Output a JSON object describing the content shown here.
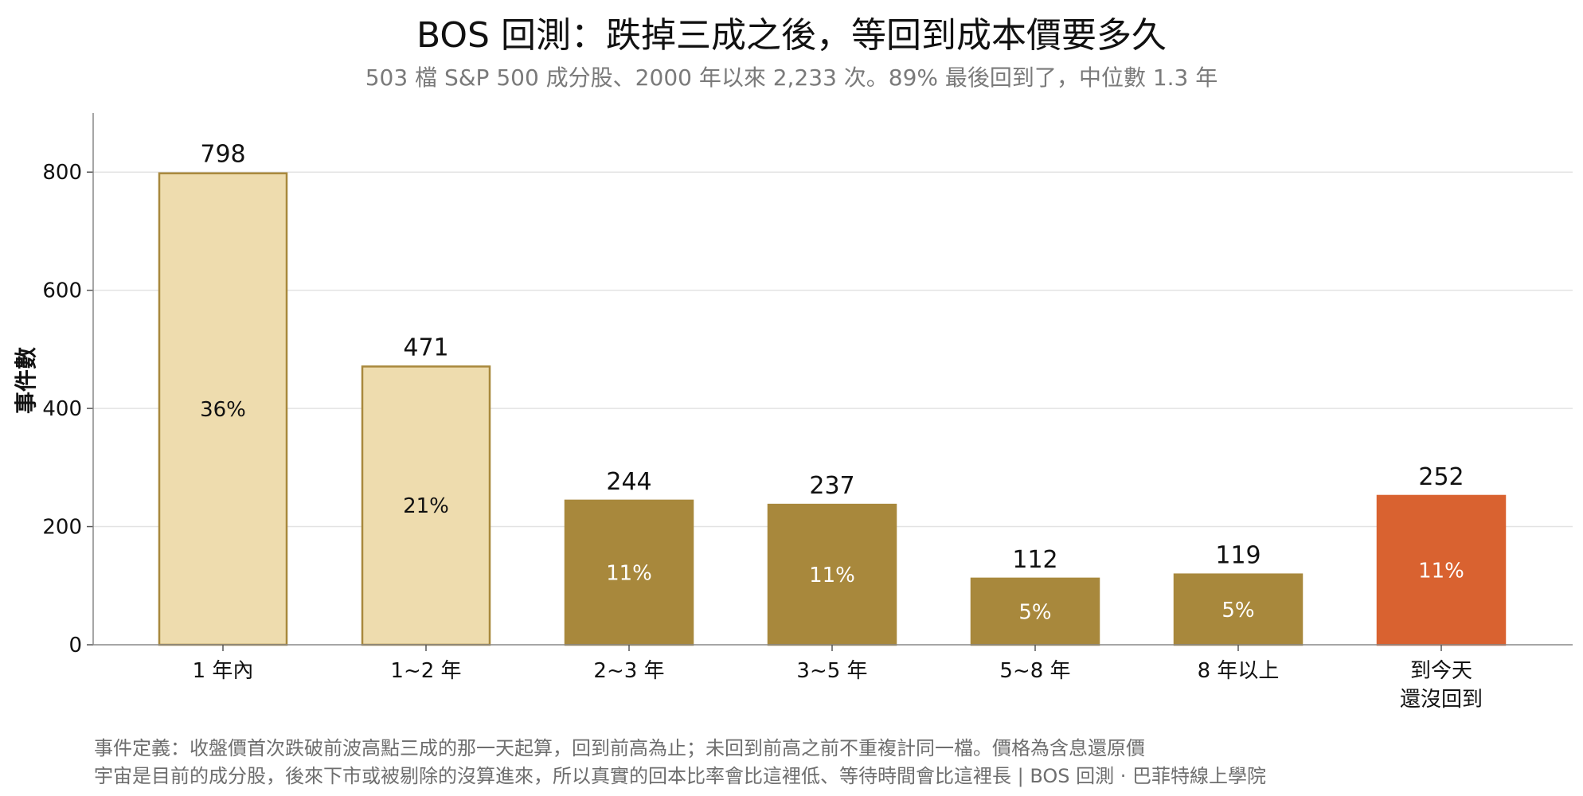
{
  "chart_data": {
    "type": "bar",
    "title": "BOS 回測：跌掉三成之後，等回到成本價要多久",
    "subtitle": "503 檔 S&P 500 成分股、2000 年以來 2,233 次。89% 最後回到了，中位數 1.3 年",
    "ylabel": "事件數",
    "xlabel": "",
    "ylim": [
      0,
      900
    ],
    "yticks": [
      0,
      200,
      400,
      600,
      800
    ],
    "grid": true,
    "categories": [
      "1 年內",
      "1~2 年",
      "2~3 年",
      "3~5 年",
      "5~8 年",
      "8 年以上",
      "到今天\n還沒回到"
    ],
    "values": [
      798,
      471,
      244,
      237,
      112,
      119,
      252
    ],
    "percent_labels": [
      "36%",
      "21%",
      "11%",
      "11%",
      "5%",
      "5%",
      "11%"
    ],
    "bar_colors": [
      "#eedcae",
      "#eedcae",
      "#a8883c",
      "#a8883c",
      "#a8883c",
      "#a8883c",
      "#d96230"
    ],
    "bar_edge_colors": [
      "#a8883c",
      "#a8883c",
      "#a8883c",
      "#a8883c",
      "#a8883c",
      "#a8883c",
      "#d96230"
    ],
    "percent_text_colors": [
      "#111111",
      "#111111",
      "#ffffff",
      "#ffffff",
      "#ffffff",
      "#ffffff",
      "#ffffff"
    ]
  },
  "footnotes": {
    "line1": "事件定義：收盤價首次跌破前波高點三成的那一天起算，回到前高為止；未回到前高之前不重複計同一檔。價格為含息還原價",
    "line2": "宇宙是目前的成分股，後來下市或被剔除的沒算進來，所以真實的回本比率會比這裡低、等待時間會比這裡長 | BOS 回測 ·  巴菲特線上學院"
  }
}
